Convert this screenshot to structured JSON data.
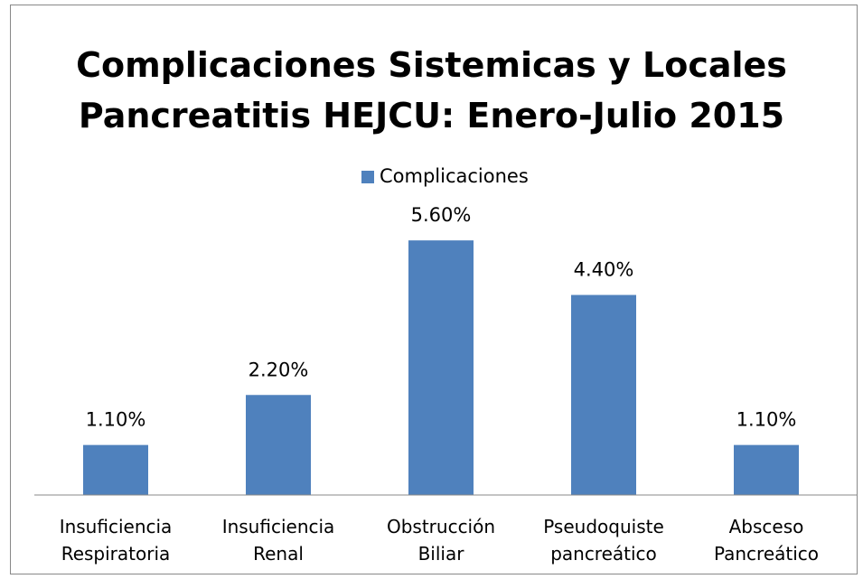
{
  "chart_data": {
    "type": "bar",
    "title": "Complicaciones Sistemicas y Locales Pancreatitis HEJCU: Enero-Julio 2015",
    "categories": [
      "Insuficiencia Respiratoria",
      "Insuficiencia Renal",
      "Obstrucción Biliar",
      "Pseudoquiste pancreático",
      "Absceso Pancreático"
    ],
    "series": [
      {
        "name": "Complicaciones",
        "color": "#4f81bd",
        "values": [
          1.1,
          2.2,
          5.6,
          4.4,
          1.1
        ],
        "value_labels": [
          "1.10%",
          "2.20%",
          "5.60%",
          "4.40%",
          "1.10%"
        ]
      }
    ],
    "ylim": [
      0,
      6
    ],
    "legend": "top"
  }
}
